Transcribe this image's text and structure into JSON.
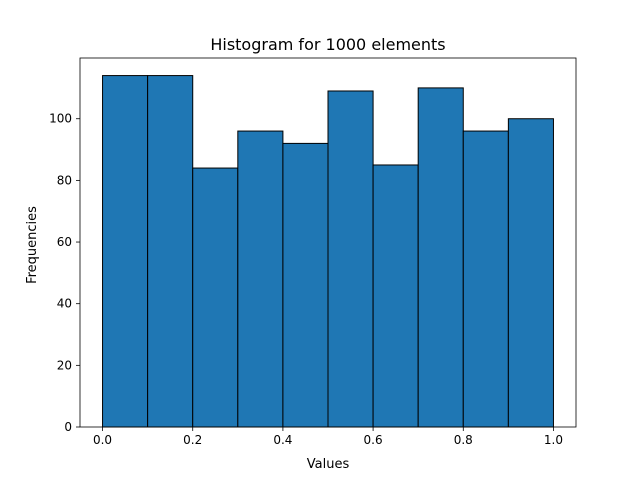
{
  "chart_data": {
    "type": "bar",
    "title": "Histogram for 1000 elements",
    "xlabel": "Values",
    "ylabel": "Frequencies",
    "bin_edges": [
      0.0,
      0.1,
      0.2,
      0.3,
      0.4,
      0.5,
      0.6,
      0.7,
      0.8,
      0.9,
      1.0
    ],
    "values": [
      114,
      114,
      84,
      96,
      92,
      109,
      85,
      110,
      96,
      100
    ],
    "xlim": [
      -0.05,
      1.05
    ],
    "ylim": [
      0,
      119.7
    ],
    "xticks": [
      0.0,
      0.2,
      0.4,
      0.6,
      0.8,
      1.0
    ],
    "xtick_labels": [
      "0.0",
      "0.2",
      "0.4",
      "0.6",
      "0.8",
      "1.0"
    ],
    "yticks": [
      0,
      20,
      40,
      60,
      80,
      100
    ],
    "ytick_labels": [
      "0",
      "20",
      "40",
      "60",
      "80",
      "100"
    ],
    "grid": false,
    "bar_color": "#1f77b4",
    "edge_color": "#000000"
  }
}
